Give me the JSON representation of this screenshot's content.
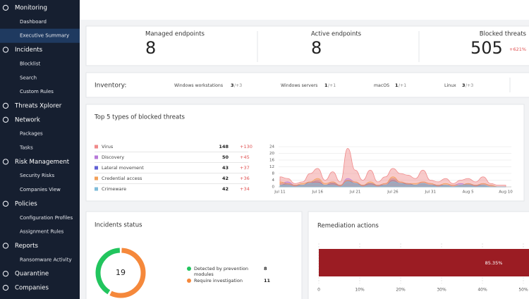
{
  "sidebar": [
    {
      "label": "Monitoring",
      "items": [
        {
          "label": "Dashboard"
        },
        {
          "label": "Executive Summary",
          "active": true
        }
      ]
    },
    {
      "label": "Incidents",
      "items": [
        {
          "label": "Blocklist"
        },
        {
          "label": "Search"
        },
        {
          "label": "Custom Rules"
        }
      ]
    },
    {
      "label": "Threats Xplorer",
      "items": []
    },
    {
      "label": "Network",
      "items": [
        {
          "label": "Packages"
        },
        {
          "label": "Tasks"
        }
      ]
    },
    {
      "label": "Risk Management",
      "items": [
        {
          "label": "Security Risks"
        },
        {
          "label": "Companies View"
        }
      ]
    },
    {
      "label": "Policies",
      "items": [
        {
          "label": "Configuration Profiles"
        },
        {
          "label": "Assignment Rules"
        }
      ]
    },
    {
      "label": "Reports",
      "items": [
        {
          "label": "Ransomware Activity"
        }
      ]
    },
    {
      "label": "Quarantine",
      "items": []
    },
    {
      "label": "Companies",
      "items": []
    }
  ],
  "kpis": [
    {
      "label": "Managed endpoints",
      "value": 8
    },
    {
      "label": "Active endpoints",
      "value": 8
    },
    {
      "label": "Blocked threats",
      "value": 505,
      "change": "+621%"
    }
  ],
  "inventory": {
    "title": "Inventory:",
    "items": [
      {
        "label": "Windows workstations",
        "value": 3,
        "change": "/+3"
      },
      {
        "label": "Windows servers",
        "value": 1,
        "change": "/+1"
      },
      {
        "label": "macOS",
        "value": 1,
        "change": "/+1"
      },
      {
        "label": "Linux",
        "value": 3,
        "change": "/+3"
      }
    ]
  },
  "top_threats": {
    "title": "Top 5 types of blocked threats",
    "rows": [
      {
        "name": "Virus",
        "color": "#f08a8a",
        "count": 148,
        "change": "+130",
        "values": [
          6,
          5,
          2,
          3,
          8,
          11,
          4,
          9,
          3,
          23,
          10,
          4,
          10,
          3,
          6,
          11,
          8,
          7,
          5,
          10,
          4,
          3,
          5,
          2,
          4,
          5,
          3,
          6,
          2,
          1,
          1
        ]
      },
      {
        "name": "Discovery",
        "color": "#b77ad9",
        "count": 50,
        "change": "+45",
        "values": [
          2,
          3,
          1,
          1,
          2,
          4,
          1,
          3,
          1,
          5,
          3,
          1,
          2,
          1,
          2,
          5,
          3,
          2,
          1,
          3,
          2,
          1,
          1,
          1,
          2,
          1,
          1,
          2,
          1,
          0,
          0
        ]
      },
      {
        "name": "Lateral movement",
        "color": "#6261d4",
        "count": 43,
        "change": "+37",
        "values": [
          1,
          2,
          1,
          1,
          3,
          3,
          1,
          2,
          1,
          4,
          2,
          1,
          2,
          1,
          1,
          4,
          2,
          2,
          1,
          2,
          1,
          1,
          1,
          0,
          1,
          2,
          1,
          1,
          0,
          0,
          0
        ]
      },
      {
        "name": "Credential access",
        "color": "#f2a05a",
        "count": 42,
        "change": "+36",
        "values": [
          3,
          2,
          1,
          2,
          3,
          5,
          2,
          3,
          1,
          4,
          3,
          1,
          3,
          1,
          2,
          6,
          3,
          2,
          2,
          3,
          2,
          1,
          2,
          1,
          1,
          2,
          1,
          2,
          1,
          0,
          0
        ]
      },
      {
        "name": "Crimeware",
        "color": "#7fbcd9",
        "count": 42,
        "change": "+34",
        "values": [
          1,
          1,
          0,
          1,
          2,
          2,
          1,
          1,
          0,
          3,
          2,
          0,
          1,
          0,
          1,
          3,
          2,
          1,
          1,
          2,
          1,
          0,
          1,
          0,
          1,
          1,
          0,
          1,
          0,
          0,
          0
        ]
      }
    ],
    "chart": {
      "type": "area",
      "x": [
        "Jul 11",
        null,
        null,
        null,
        null,
        "Jul 16",
        null,
        null,
        null,
        null,
        "Jul 21",
        null,
        null,
        null,
        null,
        "Jul 26",
        null,
        null,
        null,
        null,
        "Jul 31",
        null,
        null,
        null,
        null,
        "Aug 5",
        null,
        null,
        null,
        null,
        "Aug 10"
      ],
      "ylim": [
        0,
        24
      ],
      "yticks": [
        0,
        4,
        8,
        12,
        16,
        20,
        24
      ]
    }
  },
  "incidents": {
    "title": "Incidents status",
    "total": 19,
    "items": [
      {
        "label": "Detected by prevention modules",
        "value": 8,
        "color": "#22c55e"
      },
      {
        "label": "Require investigation",
        "value": 11,
        "color": "#f5883b"
      }
    ]
  },
  "remediation": {
    "title": "Remediation actions",
    "chart": {
      "type": "bar",
      "values": [
        85.35
      ],
      "value_labels": [
        "85.35%"
      ],
      "color": "#9b1c23",
      "xlim": [
        0,
        100
      ],
      "xticks": [
        0,
        {
          "value": 10,
          "label": "10%"
        },
        {
          "value": 20,
          "label": "20%"
        },
        {
          "value": 30,
          "label": "30%"
        },
        {
          "value": 40,
          "label": "40%"
        },
        {
          "value": 50,
          "label": "50%"
        }
      ]
    }
  }
}
